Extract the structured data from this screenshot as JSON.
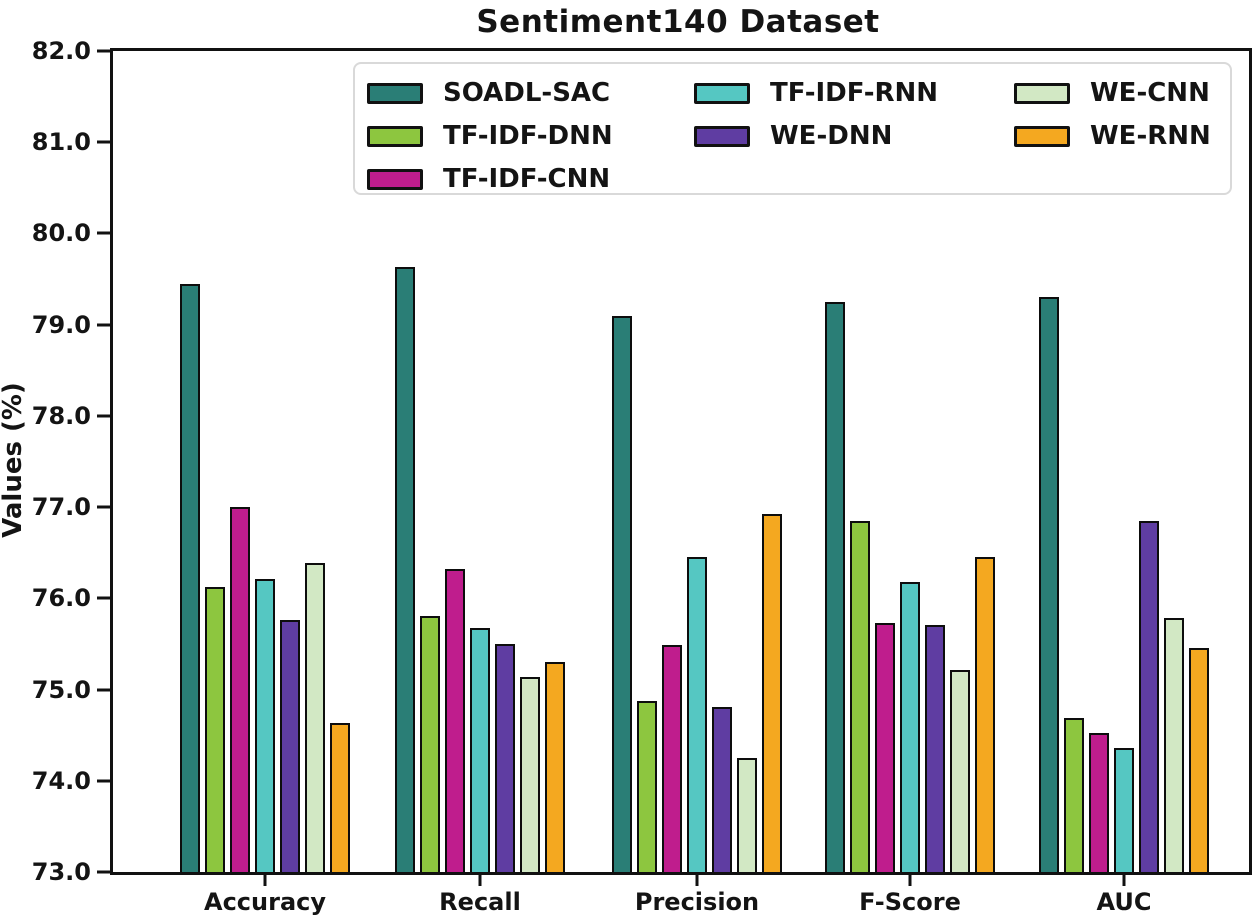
{
  "chart_data": {
    "type": "bar",
    "title": "Sentiment140 Dataset",
    "ylabel": "Values (%)",
    "xlabel": "",
    "ylim": [
      73.0,
      82.0
    ],
    "ytick_values": [
      82.0,
      81.0,
      80.0,
      79.0,
      78.0,
      77.0,
      76.0,
      75.0,
      74.0,
      73.0
    ],
    "ytick_labels": [
      "82.0",
      "81.0",
      "80.0",
      "79.0",
      "78.0",
      "77.0",
      "76.0",
      "75.0",
      "74.0",
      "73.0"
    ],
    "categories": [
      "Accuracy",
      "Recall",
      "Precision",
      "F-Score",
      "AUC"
    ],
    "series": [
      {
        "name": "SOADL-SAC",
        "color": "#2a7e76",
        "values": [
          79.45,
          79.63,
          79.1,
          79.25,
          79.3
        ]
      },
      {
        "name": "TF-IDF-DNN",
        "color": "#8dc63f",
        "values": [
          76.12,
          75.81,
          74.88,
          76.85,
          74.69
        ]
      },
      {
        "name": "TF-IDF-CNN",
        "color": "#bf1d8d",
        "values": [
          77.0,
          76.32,
          75.49,
          75.73,
          74.52
        ]
      },
      {
        "name": "TF-IDF-RNN",
        "color": "#55c7c2",
        "values": [
          76.21,
          75.68,
          76.45,
          76.18,
          74.36
        ]
      },
      {
        "name": "WE-DNN",
        "color": "#5f3da2",
        "values": [
          75.76,
          75.5,
          74.81,
          75.71,
          76.85
        ]
      },
      {
        "name": "WE-CNN",
        "color": "#d2e8c4",
        "values": [
          76.39,
          75.14,
          74.25,
          75.22,
          75.78
        ]
      },
      {
        "name": "WE-RNN",
        "color": "#f4a820",
        "values": [
          74.63,
          75.3,
          76.93,
          76.45,
          75.46
        ]
      }
    ],
    "grid": false,
    "bar_edge_color": "#0d0d0d",
    "legend": {
      "position": "upper center",
      "columns": 3,
      "column_order": [
        [
          "SOADL-SAC",
          "TF-IDF-DNN",
          "TF-IDF-CNN"
        ],
        [
          "TF-IDF-RNN",
          "WE-DNN"
        ],
        [
          "WE-CNN",
          "WE-RNN"
        ]
      ],
      "border_color": "#d9d9d9"
    }
  }
}
